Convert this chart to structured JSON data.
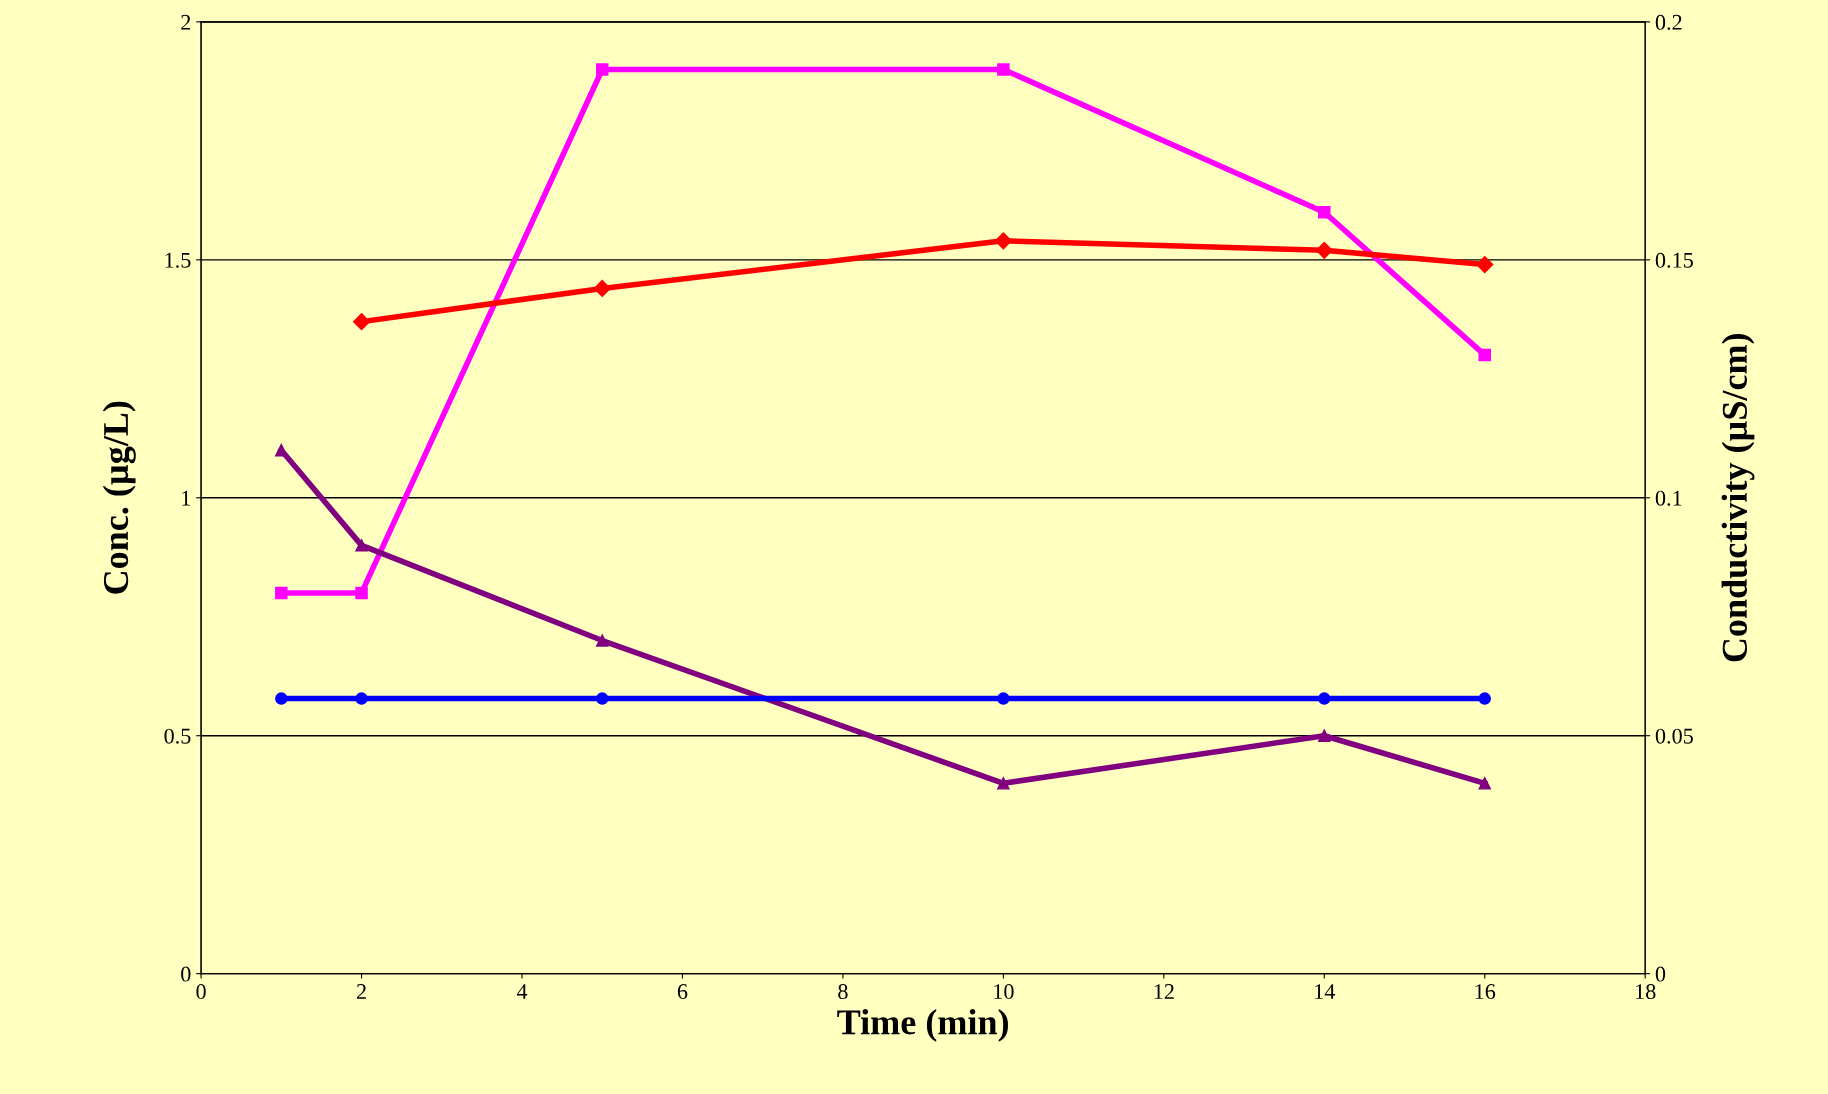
{
  "chart_data": {
    "type": "line",
    "xlabel": "Time (min)",
    "ylabel": "Conc. (µg/L)",
    "y2label": "Conductivity (µS/cm)",
    "xlim": [
      0,
      18
    ],
    "xticks": [
      0,
      2,
      4,
      6,
      8,
      10,
      12,
      14,
      16,
      18
    ],
    "ylim": [
      0,
      2
    ],
    "yticks": [
      0,
      0.5,
      1,
      1.5,
      2
    ],
    "y2lim": [
      0,
      0.2
    ],
    "y2ticks": [
      0,
      0.05,
      0.1,
      0.15,
      0.2
    ],
    "grid": "y",
    "legend": false,
    "line_style": "solid",
    "series": [
      {
        "color": "#ff0000",
        "marker": "diamond",
        "axis": "y2",
        "x": [
          2,
          5,
          10,
          14,
          16
        ],
        "values": [
          0.137,
          0.144,
          0.154,
          0.152,
          0.149
        ]
      },
      {
        "color": "#ff00ff",
        "marker": "square",
        "x": [
          1,
          2,
          5,
          10,
          14,
          16
        ],
        "values": [
          0.8,
          0.8,
          1.9,
          1.9,
          1.6,
          1.3
        ]
      },
      {
        "color": "#800080",
        "marker": "triangle",
        "x": [
          1,
          2,
          5,
          10,
          14,
          16
        ],
        "values": [
          1.1,
          0.9,
          0.7,
          0.4,
          0.5,
          0.4
        ]
      },
      {
        "color": "#0000ff",
        "marker": "circle",
        "x": [
          1,
          2,
          5,
          10,
          14,
          16
        ],
        "values": [
          0.578,
          0.578,
          0.578,
          0.578,
          0.578,
          0.578
        ]
      }
    ]
  }
}
